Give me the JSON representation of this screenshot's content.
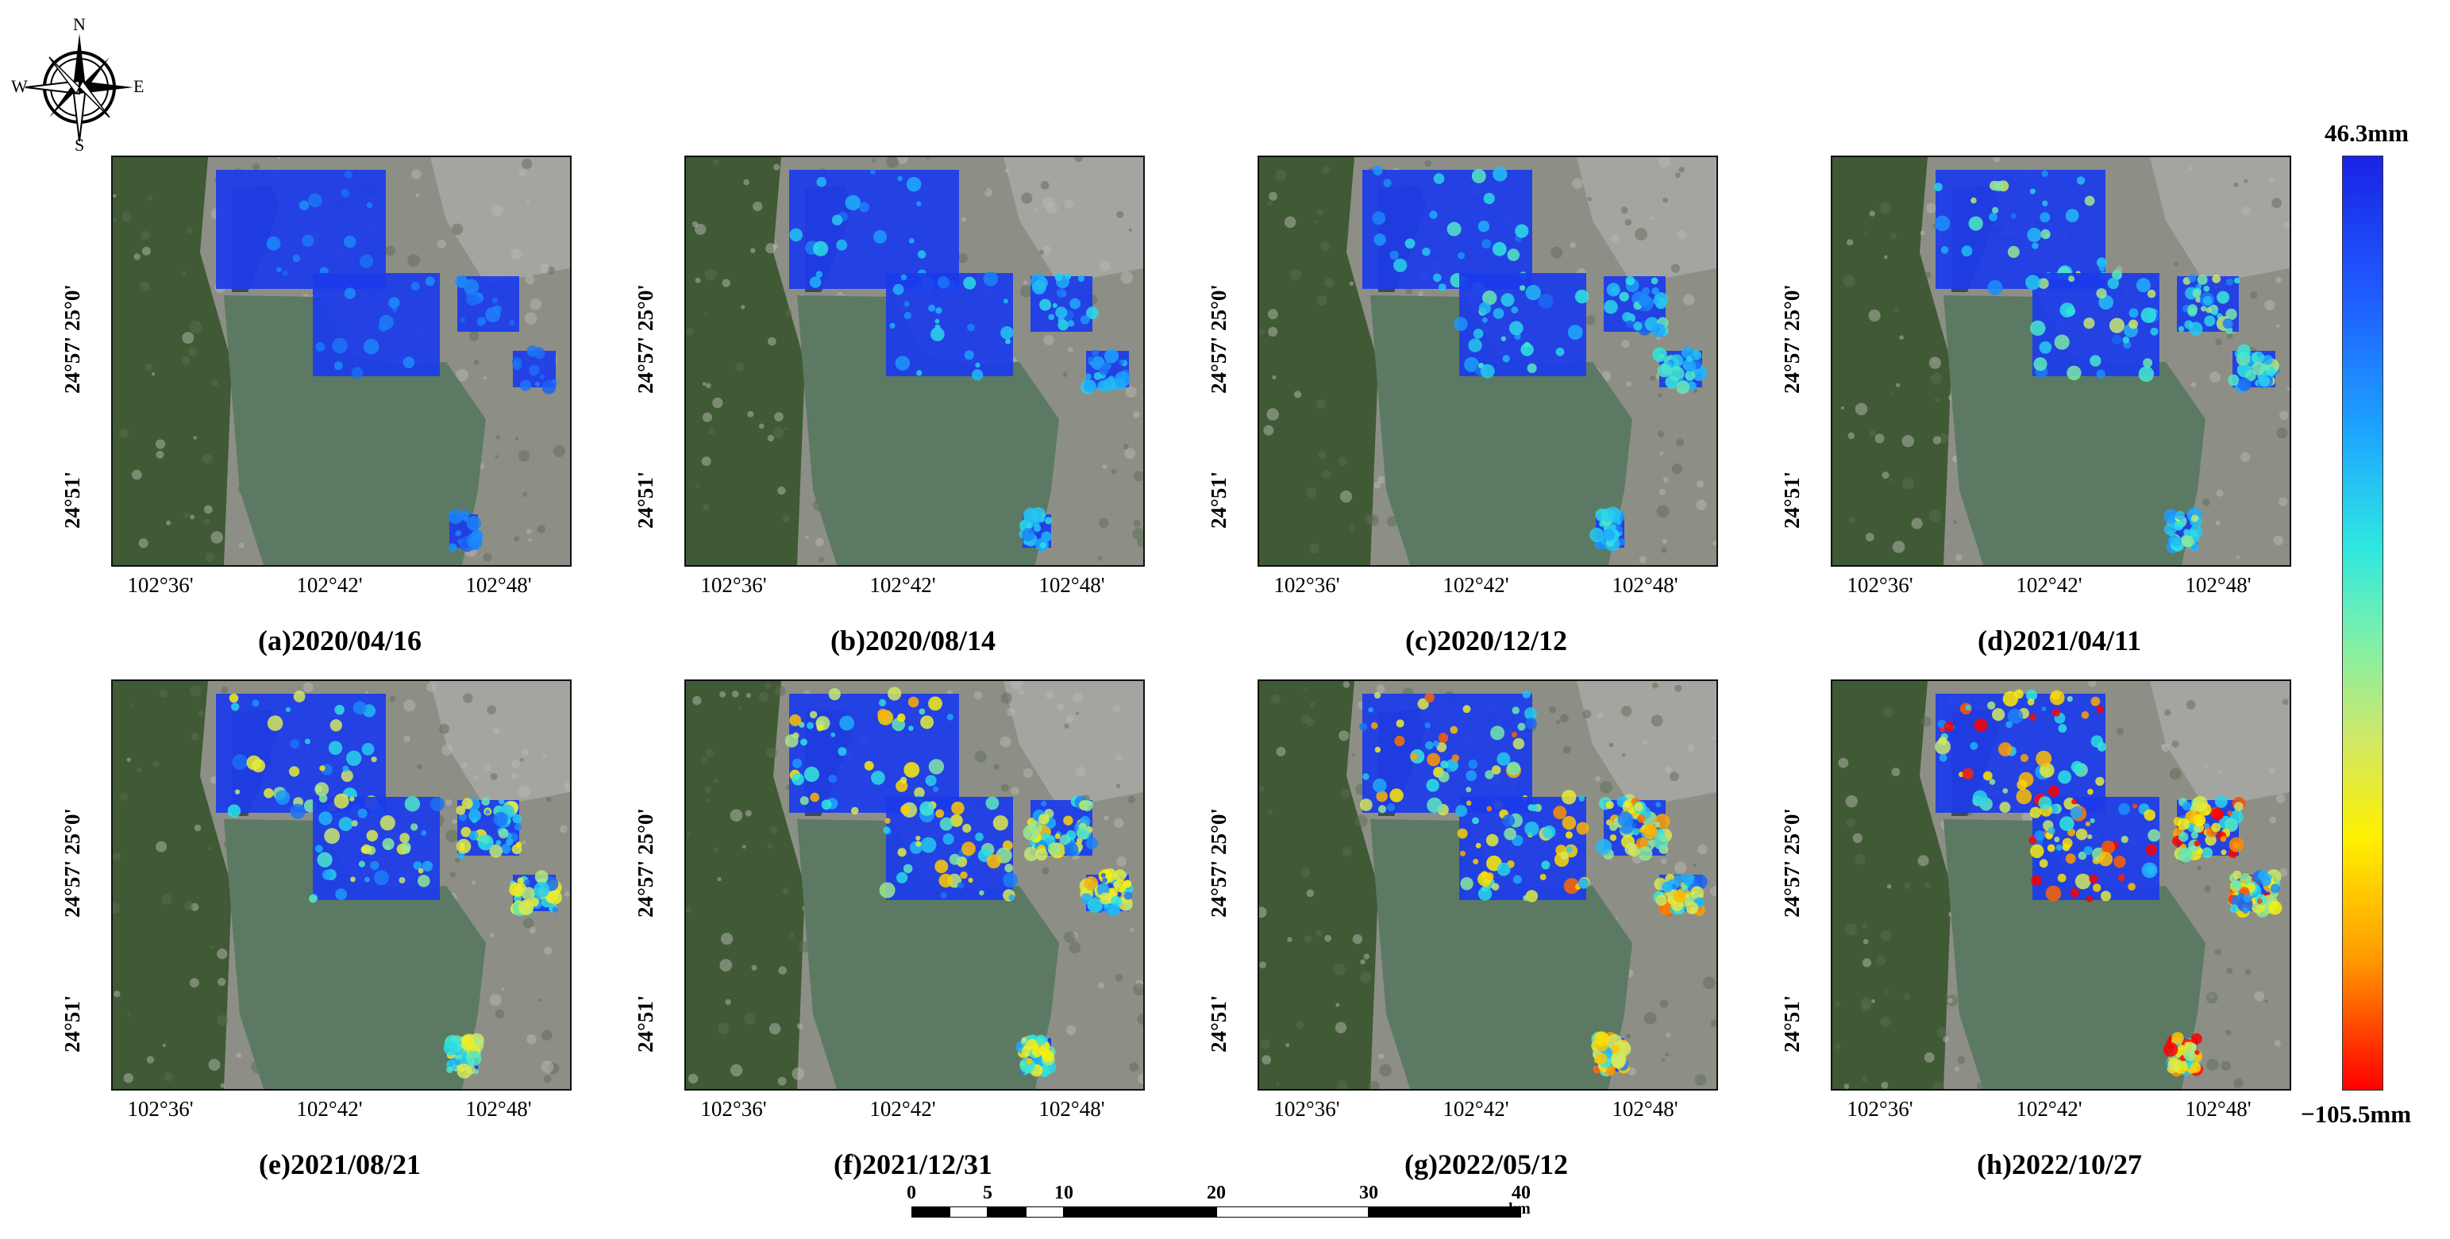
{
  "compass": {
    "n": "N",
    "s": "S",
    "e": "E",
    "w": "W"
  },
  "latitude_labels": [
    "24°57' 25°0'",
    "24°51'"
  ],
  "longitude_labels": [
    "102°36'",
    "102°42'",
    "102°48'"
  ],
  "panels": [
    {
      "caption": "(a)2020/04/16",
      "deformation_level": 0.05
    },
    {
      "caption": "(b)2020/08/14",
      "deformation_level": 0.2
    },
    {
      "caption": "(c)2020/12/12",
      "deformation_level": 0.28
    },
    {
      "caption": "(d)2021/04/11",
      "deformation_level": 0.38
    },
    {
      "caption": "(e)2021/08/21",
      "deformation_level": 0.5
    },
    {
      "caption": "(f)2021/12/31",
      "deformation_level": 0.62
    },
    {
      "caption": "(g)2022/05/12",
      "deformation_level": 0.72
    },
    {
      "caption": "(h)2022/10/27",
      "deformation_level": 0.85
    }
  ],
  "colorbar": {
    "max_label": "46.3mm",
    "min_label": "−105.5mm",
    "colors": [
      "#1a23e6",
      "#1da8ff",
      "#2fe8e0",
      "#cde86a",
      "#fff000",
      "#ff9a00",
      "#ff0000"
    ]
  },
  "scalebar": {
    "ticks": [
      "0",
      "5",
      "10",
      "20",
      "30",
      "40"
    ],
    "unit": "km"
  }
}
